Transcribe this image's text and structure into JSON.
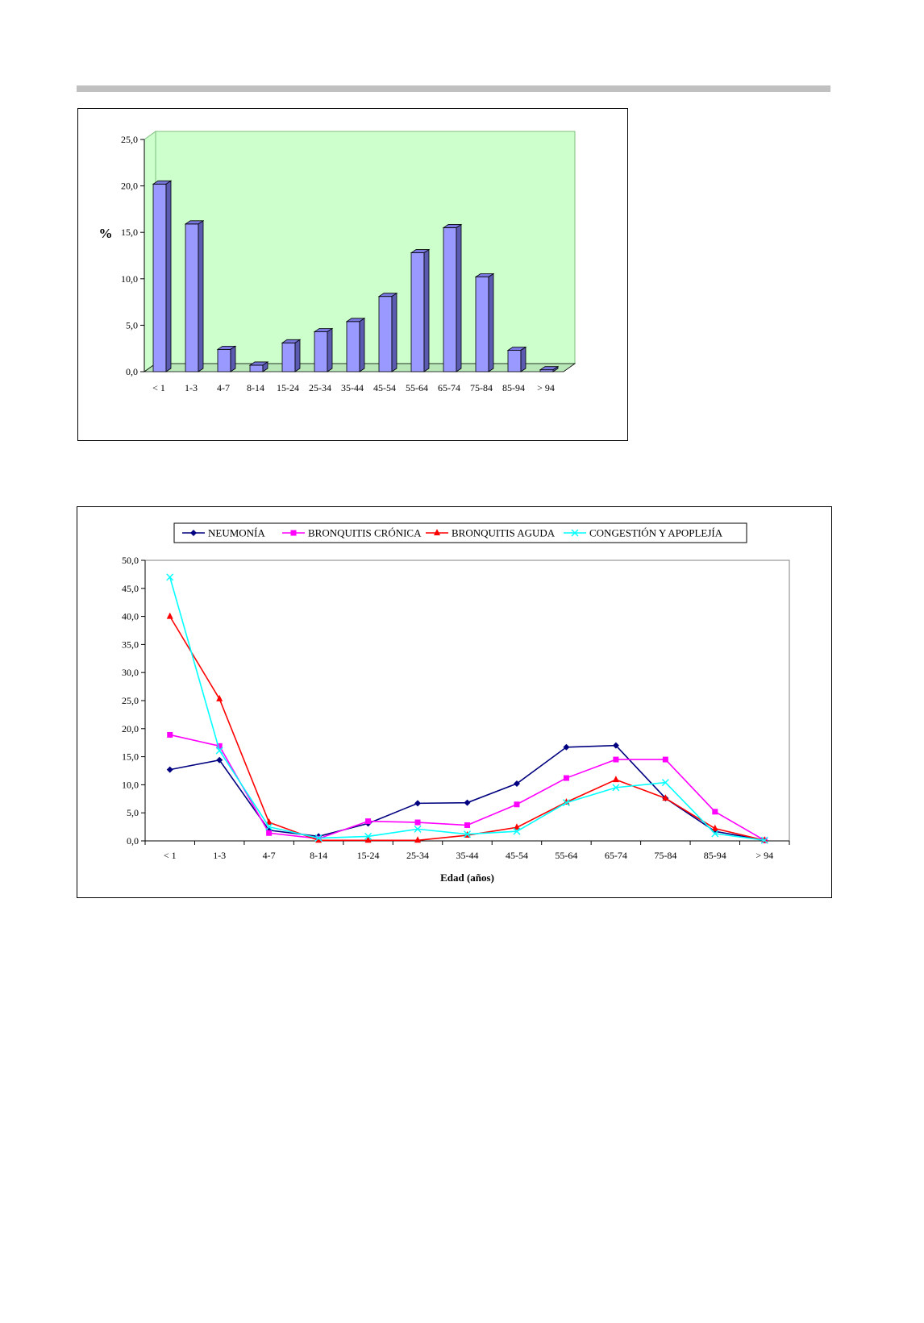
{
  "chart_data": [
    {
      "type": "bar",
      "categories": [
        "< 1",
        "1-3",
        "4-7",
        "8-14",
        "15-24",
        "25-34",
        "35-44",
        "45-54",
        "55-64",
        "65-74",
        "75-84",
        "85-94",
        "> 94"
      ],
      "values": [
        20.2,
        15.9,
        2.4,
        0.7,
        3.1,
        4.3,
        5.4,
        8.1,
        12.8,
        15.5,
        10.2,
        2.3,
        0.2
      ],
      "ylabel": "%",
      "xlabel": "",
      "ylim": [
        0,
        25
      ],
      "yticks": [
        "0,0",
        "5,0",
        "10,0",
        "15,0",
        "20,0",
        "25,0"
      ],
      "colors": {
        "bar_front": "#9999ff",
        "bar_top": "#7777dd",
        "bar_side": "#5a5ab0",
        "plot_bg": "#ccffcc",
        "plot_border": "#7fbf7f"
      },
      "grid": false
    },
    {
      "type": "line",
      "categories": [
        "< 1",
        "1-3",
        "4-7",
        "8-14",
        "15-24",
        "25-34",
        "35-44",
        "45-54",
        "55-64",
        "65-74",
        "75-84",
        "85-94",
        "> 94"
      ],
      "series": [
        {
          "name": "NEUMONÍA",
          "color": "#000080",
          "marker": "diamond",
          "values": [
            12.7,
            14.4,
            1.9,
            0.8,
            3.1,
            6.7,
            6.8,
            10.2,
            16.7,
            17.0,
            7.6,
            1.7,
            0.1
          ]
        },
        {
          "name": "BRONQUITIS CRÓNICA",
          "color": "#ff00ff",
          "marker": "square",
          "values": [
            18.9,
            16.9,
            1.4,
            0.4,
            3.5,
            3.3,
            2.8,
            6.5,
            11.2,
            14.5,
            14.5,
            5.2,
            0.1
          ]
        },
        {
          "name": "BRONQUITIS AGUDA",
          "color": "#ff0000",
          "marker": "triangle",
          "values": [
            40.0,
            25.3,
            3.3,
            0.1,
            0.1,
            0.1,
            1.0,
            2.4,
            6.9,
            10.9,
            7.6,
            2.2,
            0.1
          ]
        },
        {
          "name": "CONGESTIÓN Y APOPLEJÍA",
          "color": "#00ffff",
          "marker": "x",
          "values": [
            47.0,
            16.1,
            2.5,
            0.5,
            0.8,
            2.1,
            1.2,
            1.7,
            6.8,
            9.5,
            10.4,
            1.3,
            0.1
          ]
        }
      ],
      "xlabel": "Edad (años)",
      "ylabel": "",
      "ylim": [
        0,
        50
      ],
      "yticks": [
        "0,0",
        "5,0",
        "10,0",
        "15,0",
        "20,0",
        "25,0",
        "30,0",
        "35,0",
        "40,0",
        "45,0",
        "50,0"
      ],
      "legend_position": "top",
      "grid": false
    }
  ]
}
